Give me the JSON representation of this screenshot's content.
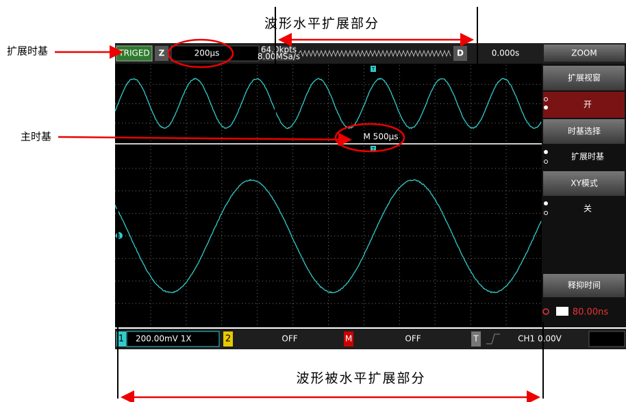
{
  "annotations": {
    "top": "波形水平扩展部分",
    "zoom_timebase": "扩展时基",
    "main_timebase": "主时基",
    "bottom": "波形被水平扩展部分"
  },
  "top_bar": {
    "trigger": "TRIGED",
    "zoom_flag": "Z",
    "zoom_timebase": "200μs",
    "memory_depth": "64.0kpts",
    "sample_rate": "8.00MSa/s",
    "delay_flag": "D",
    "delay": "0.000s",
    "mode": "ZOOM"
  },
  "screen": {
    "trigger_marker_upper": "T",
    "trigger_marker_lower": "T",
    "main_timebase": "M 500μs",
    "channel_marker": "1"
  },
  "menu": {
    "zoom_window": "扩展视窗",
    "zoom_window_value": "开",
    "timebase_select": "时基选择",
    "timebase_select_value": "扩展时基",
    "xy_mode": "XY模式",
    "xy_mode_value": "关",
    "holdoff": "释抑时间",
    "holdoff_value": "80.00ns"
  },
  "bottom_bar": {
    "ch1": "1",
    "ch1_scale": "200.00mV 1X",
    "ch2": "2",
    "ch2_state": "OFF",
    "math": "M",
    "math_state": "OFF",
    "trigger": "T",
    "trigger_level": "CH1 0.00V"
  }
}
